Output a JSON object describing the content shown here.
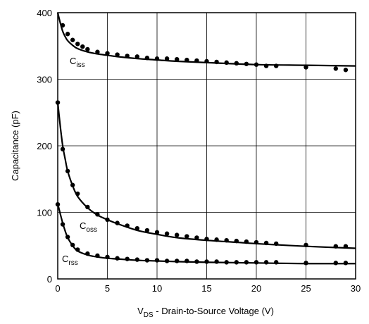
{
  "chart_data": {
    "type": "line",
    "title": "",
    "xlabel": {
      "main": "V",
      "sub": "DS",
      "rest": " - Drain-to-Source Voltage (V)"
    },
    "ylabel": "Capacitance (pF)",
    "xlim": [
      0,
      30
    ],
    "ylim": [
      0,
      400
    ],
    "xticks": [
      "0",
      "5",
      "10",
      "15",
      "20",
      "25",
      "30"
    ],
    "yticks": [
      "0",
      "100",
      "200",
      "300",
      "400"
    ],
    "grid": true,
    "series": [
      {
        "name": "Ciss",
        "label_main": "C",
        "label_sub": "iss",
        "curve": [
          [
            0,
            400
          ],
          [
            0.25,
            385
          ],
          [
            0.5,
            372
          ],
          [
            0.75,
            364
          ],
          [
            1,
            358
          ],
          [
            1.5,
            351
          ],
          [
            2,
            346
          ],
          [
            3,
            341
          ],
          [
            4,
            338
          ],
          [
            5,
            336
          ],
          [
            6,
            334
          ],
          [
            8,
            331
          ],
          [
            10,
            329
          ],
          [
            12,
            327
          ],
          [
            15,
            325
          ],
          [
            20,
            322
          ],
          [
            25,
            321
          ],
          [
            30,
            320
          ]
        ],
        "points": [
          [
            0.5,
            381
          ],
          [
            1,
            368
          ],
          [
            1.5,
            359
          ],
          [
            2,
            353
          ],
          [
            2.5,
            349
          ],
          [
            3,
            345
          ],
          [
            4,
            341
          ],
          [
            5,
            339
          ],
          [
            6,
            337
          ],
          [
            7,
            335
          ],
          [
            8,
            334
          ],
          [
            9,
            332
          ],
          [
            10,
            331
          ],
          [
            11,
            331
          ],
          [
            12,
            330
          ],
          [
            13,
            329
          ],
          [
            14,
            328
          ],
          [
            15,
            327
          ],
          [
            16,
            326
          ],
          [
            17,
            325
          ],
          [
            18,
            324
          ],
          [
            19,
            323
          ],
          [
            20,
            322
          ],
          [
            21,
            320
          ],
          [
            22,
            320
          ],
          [
            25,
            318
          ],
          [
            28,
            316
          ],
          [
            29,
            314
          ]
        ]
      },
      {
        "name": "Coss",
        "label_main": "C",
        "label_sub": "oss",
        "curve": [
          [
            0,
            265
          ],
          [
            0.25,
            230
          ],
          [
            0.5,
            200
          ],
          [
            0.75,
            180
          ],
          [
            1,
            162
          ],
          [
            1.5,
            140
          ],
          [
            2,
            124
          ],
          [
            3,
            107
          ],
          [
            4,
            96
          ],
          [
            5,
            89
          ],
          [
            6,
            83
          ],
          [
            8,
            73
          ],
          [
            10,
            67
          ],
          [
            12,
            62
          ],
          [
            15,
            58
          ],
          [
            18,
            55
          ],
          [
            20,
            53
          ],
          [
            25,
            49
          ],
          [
            30,
            46
          ]
        ],
        "points": [
          [
            0,
            265
          ],
          [
            0.5,
            195
          ],
          [
            1,
            162
          ],
          [
            1.5,
            141
          ],
          [
            2,
            128
          ],
          [
            3,
            108
          ],
          [
            4,
            97
          ],
          [
            5,
            89
          ],
          [
            6,
            84
          ],
          [
            7,
            80
          ],
          [
            8,
            76
          ],
          [
            9,
            73
          ],
          [
            10,
            70
          ],
          [
            11,
            68
          ],
          [
            12,
            66
          ],
          [
            13,
            64
          ],
          [
            14,
            62
          ],
          [
            15,
            60
          ],
          [
            16,
            59
          ],
          [
            17,
            58
          ],
          [
            18,
            57
          ],
          [
            19,
            56
          ],
          [
            20,
            55
          ],
          [
            21,
            54
          ],
          [
            22,
            53
          ],
          [
            25,
            51
          ],
          [
            28,
            49
          ],
          [
            29,
            49
          ]
        ]
      },
      {
        "name": "Crss",
        "label_main": "C",
        "label_sub": "rss",
        "curve": [
          [
            0,
            113
          ],
          [
            0.25,
            98
          ],
          [
            0.5,
            84
          ],
          [
            0.75,
            72
          ],
          [
            1,
            62
          ],
          [
            1.5,
            50
          ],
          [
            2,
            42
          ],
          [
            3,
            36
          ],
          [
            4,
            33
          ],
          [
            5,
            31
          ],
          [
            6,
            30
          ],
          [
            8,
            28
          ],
          [
            10,
            27
          ],
          [
            12,
            26
          ],
          [
            15,
            25
          ],
          [
            20,
            24
          ],
          [
            25,
            23
          ],
          [
            30,
            23
          ]
        ],
        "points": [
          [
            0,
            112
          ],
          [
            0.5,
            82
          ],
          [
            1,
            63
          ],
          [
            1.5,
            51
          ],
          [
            2,
            44
          ],
          [
            3,
            38
          ],
          [
            4,
            35
          ],
          [
            5,
            33
          ],
          [
            6,
            31
          ],
          [
            7,
            30
          ],
          [
            8,
            29
          ],
          [
            9,
            28
          ],
          [
            10,
            28
          ],
          [
            11,
            27
          ],
          [
            12,
            27
          ],
          [
            13,
            27
          ],
          [
            14,
            26
          ],
          [
            15,
            26
          ],
          [
            16,
            26
          ],
          [
            17,
            25
          ],
          [
            18,
            25
          ],
          [
            19,
            25
          ],
          [
            20,
            25
          ],
          [
            21,
            25
          ],
          [
            22,
            25
          ],
          [
            25,
            24
          ],
          [
            28,
            24
          ],
          [
            29,
            24
          ]
        ]
      }
    ]
  }
}
